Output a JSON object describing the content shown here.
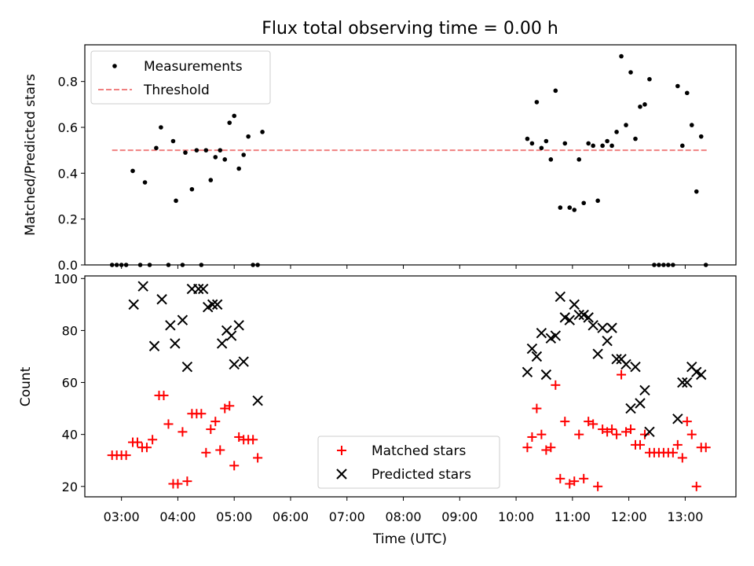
{
  "chart_data": [
    {
      "type": "scatter",
      "title": "Flux total observing time = 0.00 h",
      "xlabel": "",
      "ylabel": "Matched/Predicted stars",
      "ylim": [
        0,
        0.96
      ],
      "yticks": [
        0.0,
        0.2,
        0.4,
        0.6,
        0.8
      ],
      "ytick_labels": [
        "0.0",
        "0.2",
        "0.4",
        "0.6",
        "0.8"
      ],
      "xlim_hours": [
        2.35,
        13.9
      ],
      "legend_position": "top-left",
      "legend": [
        {
          "label": "Measurements",
          "marker": "dot",
          "color": "#000000"
        },
        {
          "label": "Threshold",
          "marker": "dashed-line",
          "color": "#f08080"
        }
      ],
      "threshold": {
        "y": 0.5,
        "x_start": "02:50",
        "x_end": "13:25",
        "color": "#f08080"
      },
      "series": [
        {
          "name": "Measurements",
          "color": "#000000",
          "points": [
            {
              "x": "02:50",
              "y": 0.0
            },
            {
              "x": "02:55",
              "y": 0.0
            },
            {
              "x": "03:00",
              "y": 0.0
            },
            {
              "x": "03:05",
              "y": 0.0
            },
            {
              "x": "03:12",
              "y": 0.41
            },
            {
              "x": "03:20",
              "y": 0.0
            },
            {
              "x": "03:25",
              "y": 0.36
            },
            {
              "x": "03:30",
              "y": 0.0
            },
            {
              "x": "03:37",
              "y": 0.51
            },
            {
              "x": "03:42",
              "y": 0.6
            },
            {
              "x": "03:50",
              "y": 0.0
            },
            {
              "x": "03:55",
              "y": 0.54
            },
            {
              "x": "03:58",
              "y": 0.28
            },
            {
              "x": "04:05",
              "y": 0.0
            },
            {
              "x": "04:08",
              "y": 0.49
            },
            {
              "x": "04:15",
              "y": 0.33
            },
            {
              "x": "04:20",
              "y": 0.5
            },
            {
              "x": "04:25",
              "y": 0.0
            },
            {
              "x": "04:30",
              "y": 0.5
            },
            {
              "x": "04:35",
              "y": 0.37
            },
            {
              "x": "04:40",
              "y": 0.47
            },
            {
              "x": "04:45",
              "y": 0.5
            },
            {
              "x": "04:50",
              "y": 0.46
            },
            {
              "x": "04:55",
              "y": 0.62
            },
            {
              "x": "05:00",
              "y": 0.65
            },
            {
              "x": "05:05",
              "y": 0.42
            },
            {
              "x": "05:10",
              "y": 0.48
            },
            {
              "x": "05:15",
              "y": 0.56
            },
            {
              "x": "05:20",
              "y": 0.0
            },
            {
              "x": "05:25",
              "y": 0.0
            },
            {
              "x": "05:30",
              "y": 0.58
            },
            {
              "x": "10:12",
              "y": 0.55
            },
            {
              "x": "10:17",
              "y": 0.53
            },
            {
              "x": "10:22",
              "y": 0.71
            },
            {
              "x": "10:27",
              "y": 0.51
            },
            {
              "x": "10:32",
              "y": 0.54
            },
            {
              "x": "10:37",
              "y": 0.46
            },
            {
              "x": "10:42",
              "y": 0.76
            },
            {
              "x": "10:47",
              "y": 0.25
            },
            {
              "x": "10:52",
              "y": 0.53
            },
            {
              "x": "10:57",
              "y": 0.25
            },
            {
              "x": "11:02",
              "y": 0.24
            },
            {
              "x": "11:07",
              "y": 0.46
            },
            {
              "x": "11:12",
              "y": 0.27
            },
            {
              "x": "11:17",
              "y": 0.53
            },
            {
              "x": "11:22",
              "y": 0.52
            },
            {
              "x": "11:27",
              "y": 0.28
            },
            {
              "x": "11:32",
              "y": 0.52
            },
            {
              "x": "11:37",
              "y": 0.54
            },
            {
              "x": "11:42",
              "y": 0.52
            },
            {
              "x": "11:47",
              "y": 0.58
            },
            {
              "x": "11:52",
              "y": 0.91
            },
            {
              "x": "11:57",
              "y": 0.61
            },
            {
              "x": "12:02",
              "y": 0.84
            },
            {
              "x": "12:07",
              "y": 0.55
            },
            {
              "x": "12:12",
              "y": 0.69
            },
            {
              "x": "12:17",
              "y": 0.7
            },
            {
              "x": "12:22",
              "y": 0.81
            },
            {
              "x": "12:27",
              "y": 0.0
            },
            {
              "x": "12:32",
              "y": 0.0
            },
            {
              "x": "12:37",
              "y": 0.0
            },
            {
              "x": "12:42",
              "y": 0.0
            },
            {
              "x": "12:47",
              "y": 0.0
            },
            {
              "x": "12:52",
              "y": 0.78
            },
            {
              "x": "12:57",
              "y": 0.52
            },
            {
              "x": "13:02",
              "y": 0.75
            },
            {
              "x": "13:07",
              "y": 0.61
            },
            {
              "x": "13:12",
              "y": 0.32
            },
            {
              "x": "13:17",
              "y": 0.56
            },
            {
              "x": "13:22",
              "y": 0.0
            }
          ]
        }
      ]
    },
    {
      "type": "scatter",
      "title": "",
      "xlabel": "Time (UTC)",
      "ylabel": "Count",
      "ylim": [
        16,
        101
      ],
      "yticks": [
        20,
        40,
        60,
        80,
        100
      ],
      "ytick_labels": [
        "20",
        "40",
        "60",
        "80",
        "100"
      ],
      "xlim_hours": [
        2.35,
        13.9
      ],
      "xticks": [
        "03:00",
        "04:00",
        "05:00",
        "06:00",
        "07:00",
        "08:00",
        "09:00",
        "10:00",
        "11:00",
        "12:00",
        "13:00"
      ],
      "legend_position": "bottom-center",
      "legend": [
        {
          "label": "Matched stars",
          "marker": "plus",
          "color": "#ff0000"
        },
        {
          "label": "Predicted stars",
          "marker": "x",
          "color": "#000000"
        }
      ],
      "series": [
        {
          "name": "Matched stars",
          "marker": "plus",
          "color": "#ff0000",
          "points": [
            {
              "x": "02:50",
              "y": 32
            },
            {
              "x": "02:55",
              "y": 32
            },
            {
              "x": "03:00",
              "y": 32
            },
            {
              "x": "03:05",
              "y": 32
            },
            {
              "x": "03:12",
              "y": 37
            },
            {
              "x": "03:17",
              "y": 37
            },
            {
              "x": "03:22",
              "y": 35
            },
            {
              "x": "03:27",
              "y": 35
            },
            {
              "x": "03:33",
              "y": 38
            },
            {
              "x": "03:40",
              "y": 55
            },
            {
              "x": "03:45",
              "y": 55
            },
            {
              "x": "03:50",
              "y": 44
            },
            {
              "x": "03:55",
              "y": 21
            },
            {
              "x": "04:00",
              "y": 21
            },
            {
              "x": "04:05",
              "y": 41
            },
            {
              "x": "04:10",
              "y": 22
            },
            {
              "x": "04:15",
              "y": 48
            },
            {
              "x": "04:20",
              "y": 48
            },
            {
              "x": "04:25",
              "y": 48
            },
            {
              "x": "04:30",
              "y": 33
            },
            {
              "x": "04:35",
              "y": 42
            },
            {
              "x": "04:40",
              "y": 45
            },
            {
              "x": "04:45",
              "y": 34
            },
            {
              "x": "04:50",
              "y": 50
            },
            {
              "x": "04:55",
              "y": 51
            },
            {
              "x": "05:00",
              "y": 28
            },
            {
              "x": "05:05",
              "y": 39
            },
            {
              "x": "05:10",
              "y": 38
            },
            {
              "x": "05:15",
              "y": 38
            },
            {
              "x": "05:20",
              "y": 38
            },
            {
              "x": "05:25",
              "y": 31
            },
            {
              "x": "10:12",
              "y": 35
            },
            {
              "x": "10:17",
              "y": 39
            },
            {
              "x": "10:22",
              "y": 50
            },
            {
              "x": "10:27",
              "y": 40
            },
            {
              "x": "10:32",
              "y": 34
            },
            {
              "x": "10:37",
              "y": 35
            },
            {
              "x": "10:42",
              "y": 59
            },
            {
              "x": "10:47",
              "y": 23
            },
            {
              "x": "10:52",
              "y": 45
            },
            {
              "x": "10:57",
              "y": 21
            },
            {
              "x": "11:02",
              "y": 22
            },
            {
              "x": "11:07",
              "y": 40
            },
            {
              "x": "11:12",
              "y": 23
            },
            {
              "x": "11:17",
              "y": 45
            },
            {
              "x": "11:22",
              "y": 44
            },
            {
              "x": "11:27",
              "y": 20
            },
            {
              "x": "11:32",
              "y": 42
            },
            {
              "x": "11:37",
              "y": 41
            },
            {
              "x": "11:42",
              "y": 42
            },
            {
              "x": "11:47",
              "y": 40
            },
            {
              "x": "11:52",
              "y": 63
            },
            {
              "x": "11:57",
              "y": 41
            },
            {
              "x": "12:02",
              "y": 42
            },
            {
              "x": "12:07",
              "y": 36
            },
            {
              "x": "12:12",
              "y": 36
            },
            {
              "x": "12:17",
              "y": 40
            },
            {
              "x": "12:22",
              "y": 33
            },
            {
              "x": "12:27",
              "y": 33
            },
            {
              "x": "12:32",
              "y": 33
            },
            {
              "x": "12:37",
              "y": 33
            },
            {
              "x": "12:42",
              "y": 33
            },
            {
              "x": "12:47",
              "y": 33
            },
            {
              "x": "12:52",
              "y": 36
            },
            {
              "x": "12:57",
              "y": 31
            },
            {
              "x": "13:02",
              "y": 45
            },
            {
              "x": "13:07",
              "y": 40
            },
            {
              "x": "13:12",
              "y": 20
            },
            {
              "x": "13:17",
              "y": 35
            },
            {
              "x": "13:22",
              "y": 35
            }
          ]
        },
        {
          "name": "Predicted stars",
          "marker": "x",
          "color": "#000000",
          "points": [
            {
              "x": "03:13",
              "y": 90
            },
            {
              "x": "03:23",
              "y": 97
            },
            {
              "x": "03:35",
              "y": 74
            },
            {
              "x": "03:43",
              "y": 92
            },
            {
              "x": "03:52",
              "y": 82
            },
            {
              "x": "03:57",
              "y": 75
            },
            {
              "x": "04:05",
              "y": 84
            },
            {
              "x": "04:10",
              "y": 66
            },
            {
              "x": "04:15",
              "y": 96
            },
            {
              "x": "04:22",
              "y": 96
            },
            {
              "x": "04:27",
              "y": 96
            },
            {
              "x": "04:32",
              "y": 89
            },
            {
              "x": "04:37",
              "y": 90
            },
            {
              "x": "04:42",
              "y": 90
            },
            {
              "x": "04:47",
              "y": 75
            },
            {
              "x": "04:52",
              "y": 80
            },
            {
              "x": "04:57",
              "y": 78
            },
            {
              "x": "05:00",
              "y": 67
            },
            {
              "x": "05:05",
              "y": 82
            },
            {
              "x": "05:10",
              "y": 68
            },
            {
              "x": "05:25",
              "y": 53
            },
            {
              "x": "10:12",
              "y": 64
            },
            {
              "x": "10:17",
              "y": 73
            },
            {
              "x": "10:22",
              "y": 70
            },
            {
              "x": "10:27",
              "y": 79
            },
            {
              "x": "10:32",
              "y": 63
            },
            {
              "x": "10:37",
              "y": 77
            },
            {
              "x": "10:42",
              "y": 78
            },
            {
              "x": "10:47",
              "y": 93
            },
            {
              "x": "10:52",
              "y": 85
            },
            {
              "x": "10:57",
              "y": 84
            },
            {
              "x": "11:02",
              "y": 90
            },
            {
              "x": "11:07",
              "y": 86
            },
            {
              "x": "11:12",
              "y": 86
            },
            {
              "x": "11:17",
              "y": 85
            },
            {
              "x": "11:22",
              "y": 82
            },
            {
              "x": "11:27",
              "y": 71
            },
            {
              "x": "11:32",
              "y": 81
            },
            {
              "x": "11:37",
              "y": 76
            },
            {
              "x": "11:42",
              "y": 81
            },
            {
              "x": "11:47",
              "y": 69
            },
            {
              "x": "11:52",
              "y": 69
            },
            {
              "x": "11:57",
              "y": 67
            },
            {
              "x": "12:02",
              "y": 50
            },
            {
              "x": "12:07",
              "y": 66
            },
            {
              "x": "12:12",
              "y": 52
            },
            {
              "x": "12:17",
              "y": 57
            },
            {
              "x": "12:22",
              "y": 41
            },
            {
              "x": "12:52",
              "y": 46
            },
            {
              "x": "12:57",
              "y": 60
            },
            {
              "x": "13:02",
              "y": 60
            },
            {
              "x": "13:07",
              "y": 66
            },
            {
              "x": "13:12",
              "y": 64
            },
            {
              "x": "13:17",
              "y": 63
            }
          ]
        }
      ]
    }
  ]
}
